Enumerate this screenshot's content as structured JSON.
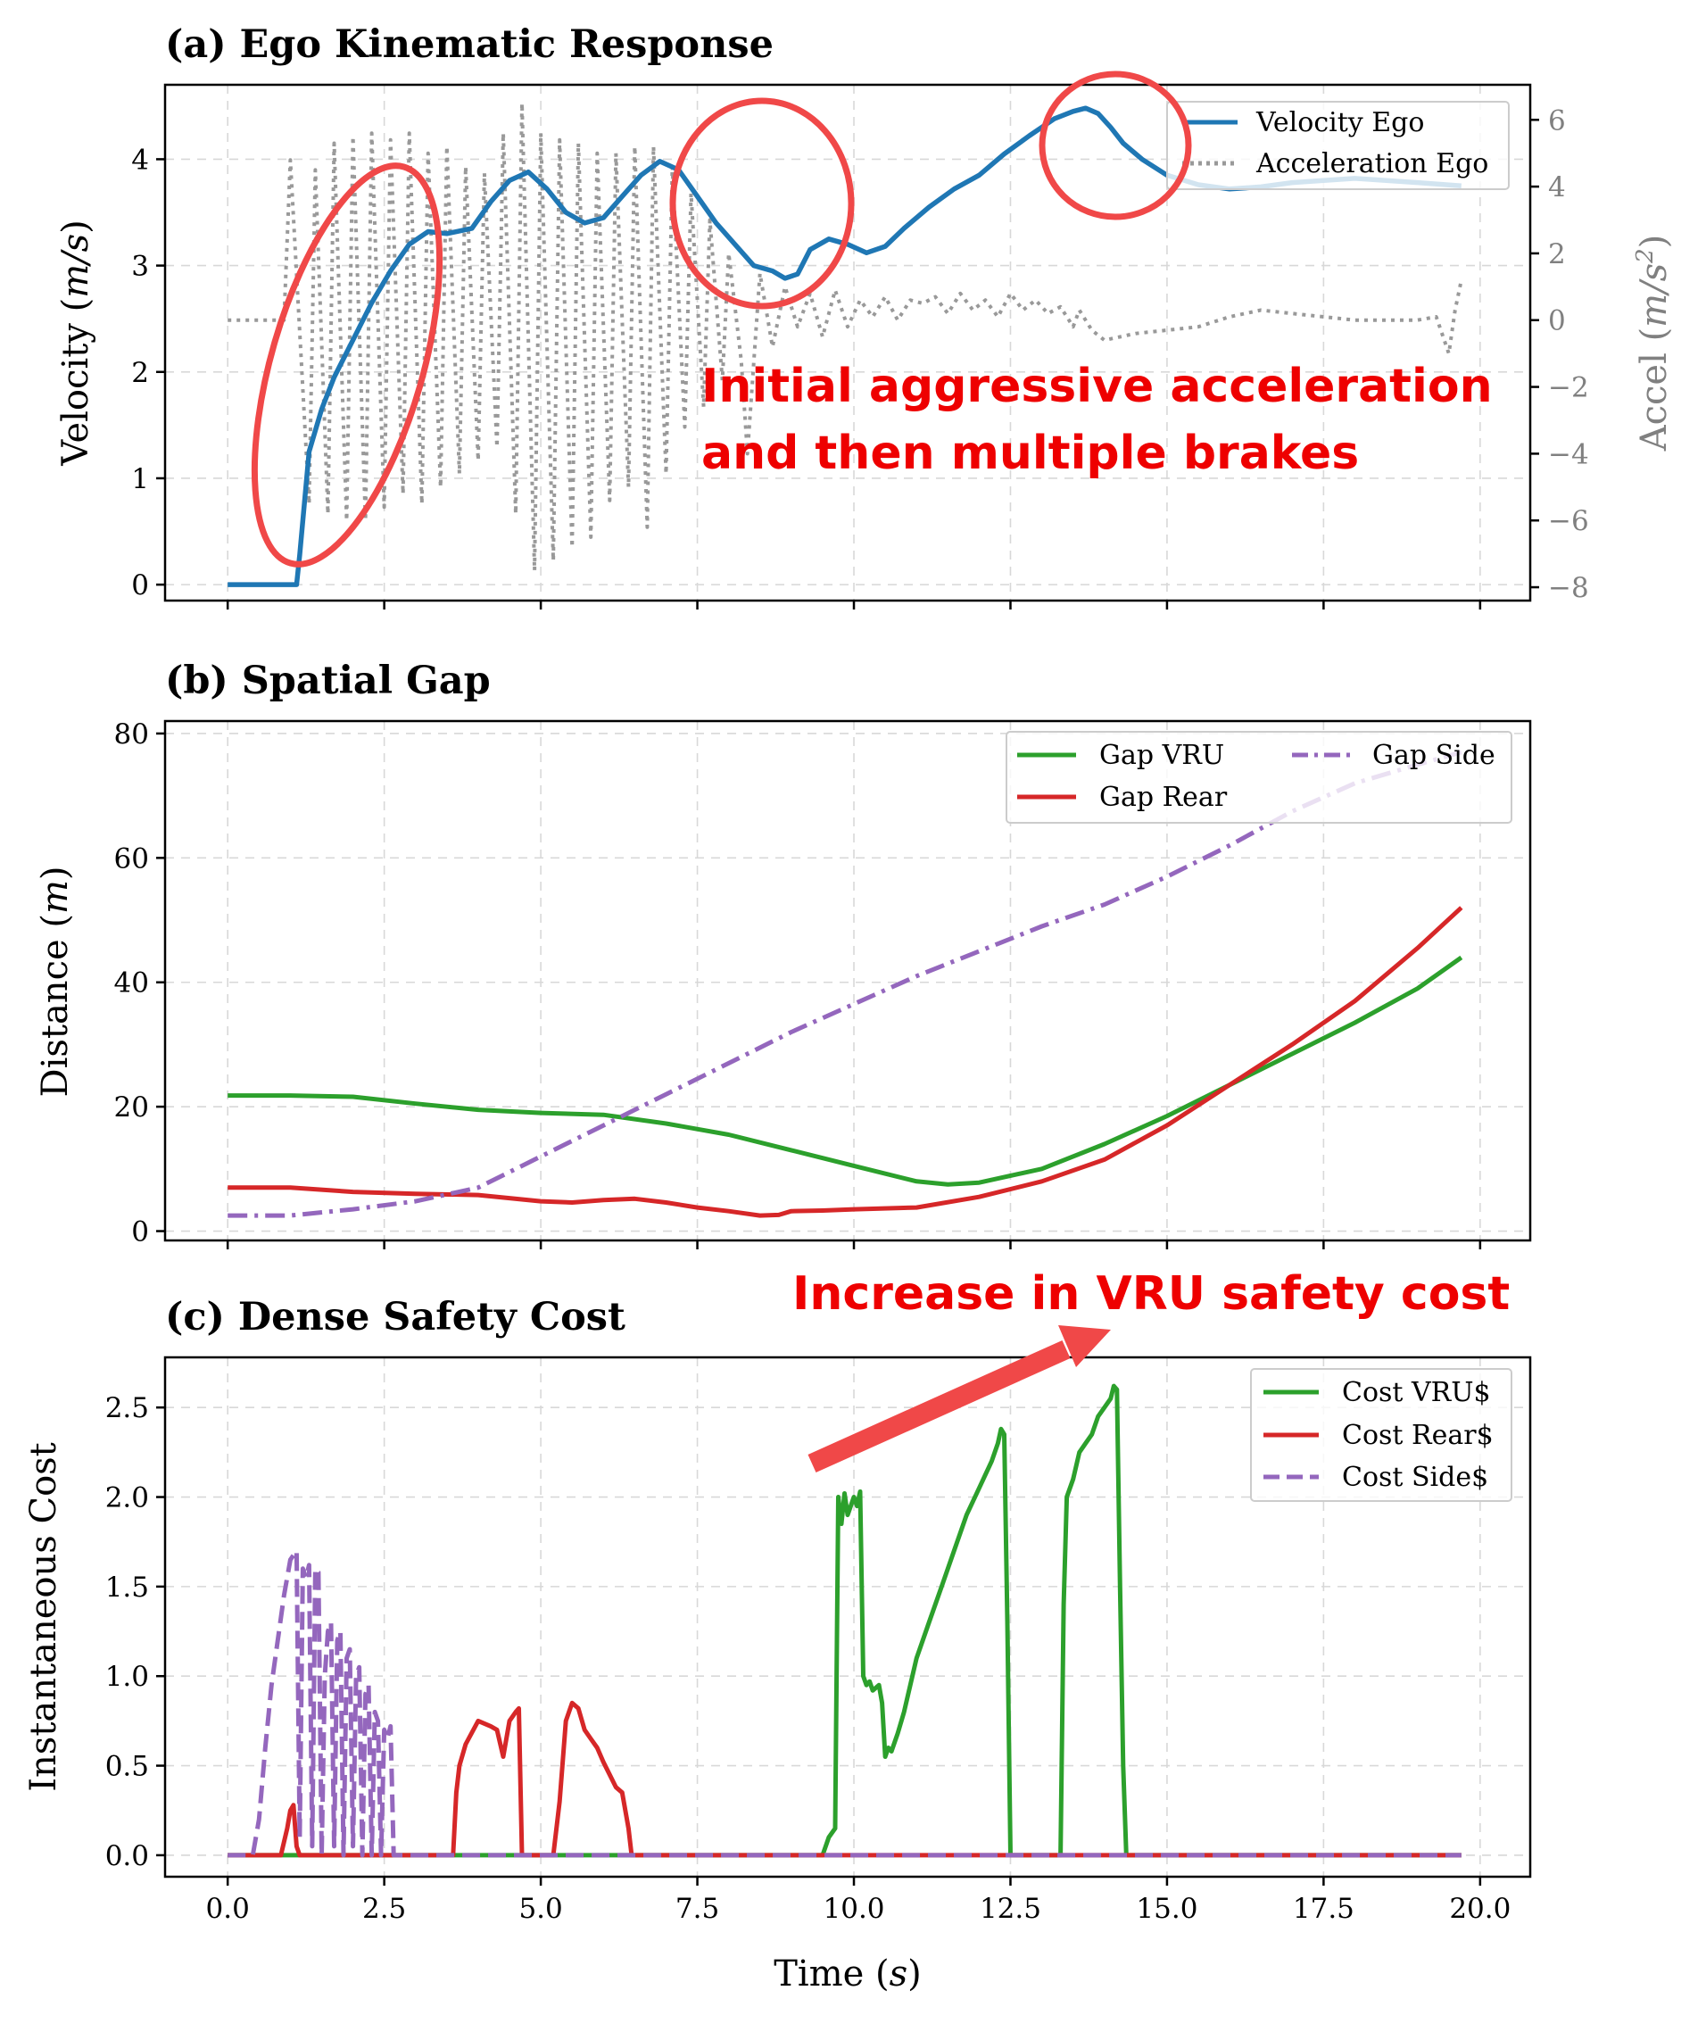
{
  "figure": {
    "xlabel": "Time (s)",
    "xlabel_main": "Time (",
    "xlabel_var": "s",
    "xlabel_close": ")",
    "x_ticks": [
      0.0,
      2.5,
      5.0,
      7.5,
      10.0,
      12.5,
      15.0,
      17.5,
      20.0
    ],
    "x_tick_labels": [
      "0.0",
      "2.5",
      "5.0",
      "7.5",
      "10.0",
      "12.5",
      "15.0",
      "17.5",
      "20.0"
    ]
  },
  "colors": {
    "velocity": "#1f77b4",
    "acceleration": "#999999",
    "gap_vru": "#2ca02c",
    "gap_rear": "#d62728",
    "gap_side": "#9467bd",
    "annotation": "#ee0000",
    "circle": "#f04848"
  },
  "annotations": {
    "panel_a_line1": "Initial aggressive acceleration",
    "panel_a_line2": "and then multiple brakes",
    "panel_c": "Increase in VRU safety cost"
  },
  "chart_data": [
    {
      "type": "line",
      "title": "(a) Ego Kinematic Response",
      "xlabel": "",
      "ylabel": "Velocity (m/s)",
      "ylabel_main": "Velocity (",
      "ylabel_var": "m/s",
      "ylabel_close": ")",
      "ylabel2_main": "Accel (",
      "ylabel2_var": "m/s",
      "ylabel2_sup": "2",
      "ylabel2_close": ")",
      "ylabel2": "Accel (m/s²)",
      "xlim": [
        -1.0,
        20.8
      ],
      "ylim": [
        -0.15,
        4.7
      ],
      "y2lim": [
        -8.4,
        7.05
      ],
      "y_ticks": [
        0,
        1,
        2,
        3,
        4
      ],
      "y_tick_labels": [
        "0",
        "1",
        "2",
        "3",
        "4"
      ],
      "y2_ticks": [
        -8,
        -6,
        -4,
        -2,
        0,
        2,
        4,
        6
      ],
      "y2_tick_labels": [
        "−8",
        "−6",
        "−4",
        "−2",
        "0",
        "2",
        "4",
        "6"
      ],
      "legend": [
        "Velocity Ego",
        "Acceleration Ego"
      ],
      "series": [
        {
          "name": "Velocity Ego",
          "axis": "left",
          "style": "solid",
          "x": [
            0.0,
            1.1,
            1.15,
            1.3,
            1.5,
            1.7,
            2.0,
            2.3,
            2.6,
            2.9,
            3.2,
            3.5,
            3.9,
            4.2,
            4.5,
            4.8,
            5.1,
            5.4,
            5.7,
            6.0,
            6.3,
            6.6,
            6.9,
            7.2,
            7.5,
            7.8,
            8.1,
            8.4,
            8.7,
            8.9,
            9.1,
            9.3,
            9.6,
            9.9,
            10.2,
            10.5,
            10.8,
            11.2,
            11.6,
            12.0,
            12.4,
            12.8,
            13.2,
            13.5,
            13.7,
            13.9,
            14.1,
            14.3,
            14.6,
            15.0,
            15.5,
            16.0,
            16.5,
            17.0,
            17.5,
            18.0,
            18.5,
            19.0,
            19.7
          ],
          "values": [
            0.0,
            0.0,
            0.28,
            1.25,
            1.65,
            1.95,
            2.3,
            2.65,
            2.95,
            3.2,
            3.32,
            3.3,
            3.35,
            3.6,
            3.8,
            3.88,
            3.72,
            3.5,
            3.4,
            3.45,
            3.65,
            3.85,
            3.98,
            3.9,
            3.65,
            3.4,
            3.2,
            3.0,
            2.95,
            2.88,
            2.92,
            3.15,
            3.25,
            3.2,
            3.12,
            3.18,
            3.35,
            3.55,
            3.72,
            3.85,
            4.05,
            4.22,
            4.38,
            4.45,
            4.48,
            4.43,
            4.3,
            4.15,
            4.0,
            3.85,
            3.76,
            3.72,
            3.74,
            3.78,
            3.8,
            3.82,
            3.8,
            3.78,
            3.75
          ]
        },
        {
          "name": "Acceleration Ego",
          "axis": "right",
          "style": "dotted",
          "x": [
            0.0,
            0.9,
            1.0,
            1.3,
            1.4,
            1.6,
            1.7,
            1.9,
            2.0,
            2.2,
            2.3,
            2.5,
            2.6,
            2.8,
            2.9,
            3.1,
            3.2,
            3.4,
            3.5,
            3.7,
            3.8,
            4.0,
            4.1,
            4.3,
            4.4,
            4.6,
            4.7,
            4.9,
            5.0,
            5.2,
            5.3,
            5.5,
            5.6,
            5.8,
            5.9,
            6.1,
            6.2,
            6.4,
            6.5,
            6.7,
            6.8,
            7.0,
            7.1,
            7.3,
            7.4,
            7.6,
            7.7,
            7.9,
            8.0,
            8.2,
            8.3,
            8.5,
            8.7,
            8.9,
            9.1,
            9.3,
            9.5,
            9.7,
            9.9,
            10.1,
            10.3,
            10.5,
            10.7,
            10.9,
            11.1,
            11.3,
            11.5,
            11.7,
            11.9,
            12.1,
            12.3,
            12.5,
            12.7,
            12.9,
            13.1,
            13.3,
            13.5,
            13.6,
            13.8,
            14.0,
            14.5,
            15.0,
            15.5,
            16.0,
            16.5,
            17.0,
            17.5,
            18.0,
            18.5,
            19.0,
            19.3,
            19.5,
            19.6,
            19.7
          ],
          "values": [
            0.0,
            0.0,
            4.8,
            -5.5,
            4.5,
            -5.8,
            5.3,
            -6.0,
            5.5,
            -6.0,
            5.6,
            -5.6,
            5.4,
            -5.2,
            5.6,
            -5.5,
            5.0,
            -5.0,
            5.2,
            -4.6,
            4.6,
            -4.2,
            4.4,
            -3.8,
            5.6,
            -5.8,
            6.5,
            -7.5,
            5.6,
            -7.2,
            5.4,
            -6.8,
            5.3,
            -6.5,
            5.0,
            -5.4,
            5.0,
            -5.0,
            5.2,
            -6.2,
            5.2,
            -4.6,
            4.6,
            -3.2,
            3.8,
            -2.6,
            3.0,
            -1.8,
            2.0,
            -1.2,
            -4.0,
            1.4,
            -0.8,
            1.0,
            -0.2,
            0.8,
            -0.5,
            0.9,
            -0.2,
            0.6,
            0.1,
            0.7,
            0.0,
            0.6,
            0.5,
            0.7,
            0.2,
            0.8,
            0.3,
            0.6,
            0.1,
            0.8,
            0.3,
            0.6,
            0.2,
            0.4,
            -0.2,
            0.3,
            -0.3,
            -0.6,
            -0.4,
            -0.3,
            -0.2,
            0.1,
            0.3,
            0.2,
            0.1,
            0.0,
            0.0,
            0.0,
            0.1,
            -1.0,
            0.3,
            1.2
          ]
        }
      ]
    },
    {
      "type": "line",
      "title": "(b) Spatial Gap",
      "xlabel": "",
      "ylabel": "Distance (m)",
      "ylabel_main": "Distance (",
      "ylabel_var": "m",
      "ylabel_close": ")",
      "xlim": [
        -1.0,
        20.8
      ],
      "ylim": [
        -1.5,
        82.0
      ],
      "y_ticks": [
        0,
        20,
        40,
        60,
        80
      ],
      "y_tick_labels": [
        "0",
        "20",
        "40",
        "60",
        "80"
      ],
      "legend": [
        "Gap VRU",
        "Gap Rear",
        "Gap Side"
      ],
      "series": [
        {
          "name": "Gap VRU",
          "style": "solid",
          "x": [
            0.0,
            1.0,
            2.0,
            3.0,
            4.0,
            5.0,
            6.0,
            7.0,
            8.0,
            9.0,
            10.0,
            11.0,
            11.5,
            12.0,
            13.0,
            14.0,
            15.0,
            16.0,
            17.0,
            18.0,
            19.0,
            19.7
          ],
          "values": [
            21.8,
            21.8,
            21.6,
            20.5,
            19.5,
            19.0,
            18.7,
            17.3,
            15.5,
            13.0,
            10.5,
            8.0,
            7.5,
            7.8,
            10.0,
            14.0,
            18.5,
            23.5,
            28.5,
            33.5,
            39.0,
            44.0
          ]
        },
        {
          "name": "Gap Rear",
          "style": "solid",
          "x": [
            0.0,
            1.0,
            2.0,
            3.0,
            4.0,
            5.0,
            5.5,
            6.0,
            6.5,
            7.0,
            7.5,
            8.0,
            8.5,
            8.8,
            9.0,
            9.5,
            10.0,
            11.0,
            12.0,
            13.0,
            14.0,
            15.0,
            16.0,
            17.0,
            18.0,
            19.0,
            19.7
          ],
          "values": [
            7.0,
            7.0,
            6.3,
            6.0,
            5.8,
            4.8,
            4.6,
            5.0,
            5.2,
            4.6,
            3.8,
            3.2,
            2.5,
            2.6,
            3.2,
            3.3,
            3.5,
            3.8,
            5.5,
            8.0,
            11.5,
            17.0,
            23.5,
            30.0,
            37.0,
            45.5,
            52.0
          ]
        },
        {
          "name": "Gap Side",
          "style": "dashdot",
          "x": [
            0.0,
            1.0,
            2.0,
            3.0,
            4.0,
            5.0,
            6.0,
            7.0,
            8.0,
            9.0,
            10.0,
            11.0,
            12.0,
            13.0,
            14.0,
            15.0,
            16.0,
            17.0,
            18.0,
            19.0,
            19.7
          ],
          "values": [
            2.5,
            2.5,
            3.5,
            4.8,
            7.0,
            12.0,
            17.0,
            22.0,
            27.0,
            32.0,
            36.5,
            41.0,
            45.0,
            49.0,
            52.5,
            57.0,
            62.0,
            67.5,
            72.0,
            75.0,
            77.0
          ]
        }
      ]
    },
    {
      "type": "line",
      "title": "(c) Dense Safety Cost",
      "xlabel": "Time (s)",
      "ylabel": "Instantaneous Cost",
      "xlim": [
        -1.0,
        20.8
      ],
      "ylim": [
        -0.12,
        2.78
      ],
      "y_ticks": [
        0.0,
        0.5,
        1.0,
        1.5,
        2.0,
        2.5
      ],
      "y_tick_labels": [
        "0.0",
        "0.5",
        "1.0",
        "1.5",
        "2.0",
        "2.5"
      ],
      "legend": [
        "Cost VRU$",
        "Cost Rear$",
        "Cost Side$"
      ],
      "series": [
        {
          "name": "Cost VRU$",
          "style": "solid",
          "x": [
            0.0,
            9.5,
            9.6,
            9.7,
            9.75,
            9.8,
            9.85,
            9.9,
            10.0,
            10.05,
            10.1,
            10.15,
            10.2,
            10.25,
            10.3,
            10.4,
            10.45,
            10.5,
            10.55,
            10.6,
            10.7,
            10.8,
            10.9,
            11.0,
            11.2,
            11.4,
            11.6,
            11.8,
            12.0,
            12.2,
            12.3,
            12.35,
            12.4,
            12.45,
            12.5,
            12.55,
            13.3,
            13.35,
            13.4,
            13.5,
            13.6,
            13.7,
            13.8,
            13.9,
            14.0,
            14.1,
            14.15,
            14.2,
            14.25,
            14.3,
            14.35,
            19.7
          ],
          "values": [
            0.0,
            0.0,
            0.1,
            0.15,
            2.0,
            1.85,
            2.02,
            1.9,
            2.0,
            1.95,
            2.03,
            1.0,
            0.95,
            0.97,
            0.92,
            0.95,
            0.85,
            0.55,
            0.6,
            0.58,
            0.68,
            0.8,
            0.95,
            1.1,
            1.3,
            1.5,
            1.7,
            1.9,
            2.05,
            2.2,
            2.3,
            2.38,
            2.35,
            1.3,
            0.0,
            0.0,
            0.0,
            1.4,
            2.0,
            2.1,
            2.25,
            2.3,
            2.35,
            2.45,
            2.5,
            2.55,
            2.62,
            2.6,
            1.5,
            0.5,
            0.0,
            0.0
          ]
        },
        {
          "name": "Cost Rear$",
          "style": "solid",
          "x": [
            0.0,
            0.85,
            0.95,
            1.0,
            1.05,
            1.1,
            1.15,
            3.6,
            3.65,
            3.7,
            3.8,
            4.0,
            4.2,
            4.3,
            4.4,
            4.5,
            4.6,
            4.65,
            4.7,
            5.2,
            5.3,
            5.4,
            5.5,
            5.6,
            5.7,
            5.8,
            5.9,
            6.0,
            6.1,
            6.2,
            6.3,
            6.4,
            6.45,
            19.7
          ],
          "values": [
            0.0,
            0.0,
            0.15,
            0.25,
            0.28,
            0.05,
            0.0,
            0.0,
            0.35,
            0.5,
            0.62,
            0.75,
            0.72,
            0.7,
            0.55,
            0.75,
            0.8,
            0.82,
            0.0,
            0.0,
            0.3,
            0.75,
            0.85,
            0.82,
            0.7,
            0.65,
            0.6,
            0.52,
            0.45,
            0.38,
            0.35,
            0.15,
            0.0,
            0.0
          ]
        },
        {
          "name": "Cost Side$",
          "style": "dashed",
          "x": [
            0.0,
            0.4,
            0.5,
            0.6,
            0.7,
            0.8,
            0.9,
            1.0,
            1.1,
            1.15,
            1.2,
            1.25,
            1.3,
            1.35,
            1.4,
            1.45,
            1.5,
            1.55,
            1.6,
            1.65,
            1.7,
            1.75,
            1.8,
            1.85,
            1.9,
            1.95,
            2.0,
            2.05,
            2.1,
            2.15,
            2.2,
            2.25,
            2.3,
            2.35,
            2.4,
            2.45,
            2.5,
            2.55,
            2.6,
            2.65,
            19.7
          ],
          "values": [
            0.0,
            0.0,
            0.2,
            0.6,
            0.95,
            1.2,
            1.45,
            1.65,
            1.7,
            0.1,
            1.6,
            1.55,
            1.62,
            0.05,
            1.6,
            1.58,
            0.0,
            1.0,
            1.25,
            1.3,
            0.05,
            1.2,
            1.25,
            0.0,
            1.1,
            1.15,
            0.05,
            1.0,
            1.05,
            0.0,
            0.9,
            0.95,
            0.0,
            0.8,
            0.75,
            0.0,
            0.7,
            0.65,
            0.72,
            0.0,
            0.0
          ]
        }
      ]
    }
  ]
}
